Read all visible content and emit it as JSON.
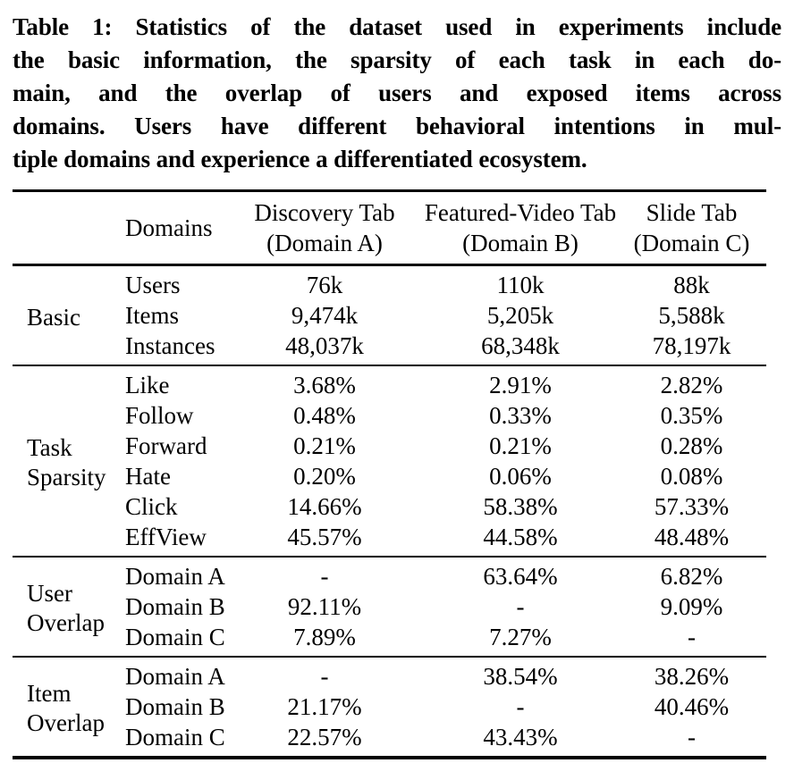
{
  "caption": {
    "lines": [
      "Table 1: Statistics of the dataset used in experiments include",
      "the basic information, the sparsity of each task in each do-",
      "main, and the overlap of users and exposed items across",
      "domains. Users have different behavioral intentions in mul-",
      "tiple domains and experience a differentiated ecosystem."
    ]
  },
  "table": {
    "header": {
      "row_label": "Domains",
      "columns": [
        {
          "line1": "Discovery Tab",
          "line2": "(Domain A)"
        },
        {
          "line1": "Featured-Video Tab",
          "line2": "(Domain B)"
        },
        {
          "line1": "Slide Tab",
          "line2": "(Domain C)"
        }
      ]
    },
    "sections": [
      {
        "group": "Basic",
        "rows": [
          {
            "label": "Users",
            "values": [
              "76k",
              "110k",
              "88k"
            ]
          },
          {
            "label": "Items",
            "values": [
              "9,474k",
              "5,205k",
              "5,588k"
            ]
          },
          {
            "label": "Instances",
            "values": [
              "48,037k",
              "68,348k",
              "78,197k"
            ]
          }
        ]
      },
      {
        "group": "Task Sparsity",
        "rows": [
          {
            "label": "Like",
            "values": [
              "3.68%",
              "2.91%",
              "2.82%"
            ]
          },
          {
            "label": "Follow",
            "values": [
              "0.48%",
              "0.33%",
              "0.35%"
            ]
          },
          {
            "label": "Forward",
            "values": [
              "0.21%",
              "0.21%",
              "0.28%"
            ]
          },
          {
            "label": "Hate",
            "values": [
              "0.20%",
              "0.06%",
              "0.08%"
            ]
          },
          {
            "label": "Click",
            "values": [
              "14.66%",
              "58.38%",
              "57.33%"
            ]
          },
          {
            "label": "EffView",
            "values": [
              "45.57%",
              "44.58%",
              "48.48%"
            ]
          }
        ]
      },
      {
        "group": "User Overlap",
        "rows": [
          {
            "label": "Domain A",
            "values": [
              "-",
              "63.64%",
              "6.82%"
            ]
          },
          {
            "label": "Domain B",
            "values": [
              "92.11%",
              "-",
              "9.09%"
            ]
          },
          {
            "label": "Domain C",
            "values": [
              "7.89%",
              "7.27%",
              "-"
            ]
          }
        ]
      },
      {
        "group": "Item Overlap",
        "rows": [
          {
            "label": "Domain A",
            "values": [
              "-",
              "38.54%",
              "38.26%"
            ]
          },
          {
            "label": "Domain B",
            "values": [
              "21.17%",
              "-",
              "40.46%"
            ]
          },
          {
            "label": "Domain C",
            "values": [
              "22.57%",
              "43.43%",
              "-"
            ]
          }
        ]
      }
    ]
  },
  "colors": {
    "text": "#000000",
    "background": "#ffffff",
    "rule": "#000000"
  }
}
